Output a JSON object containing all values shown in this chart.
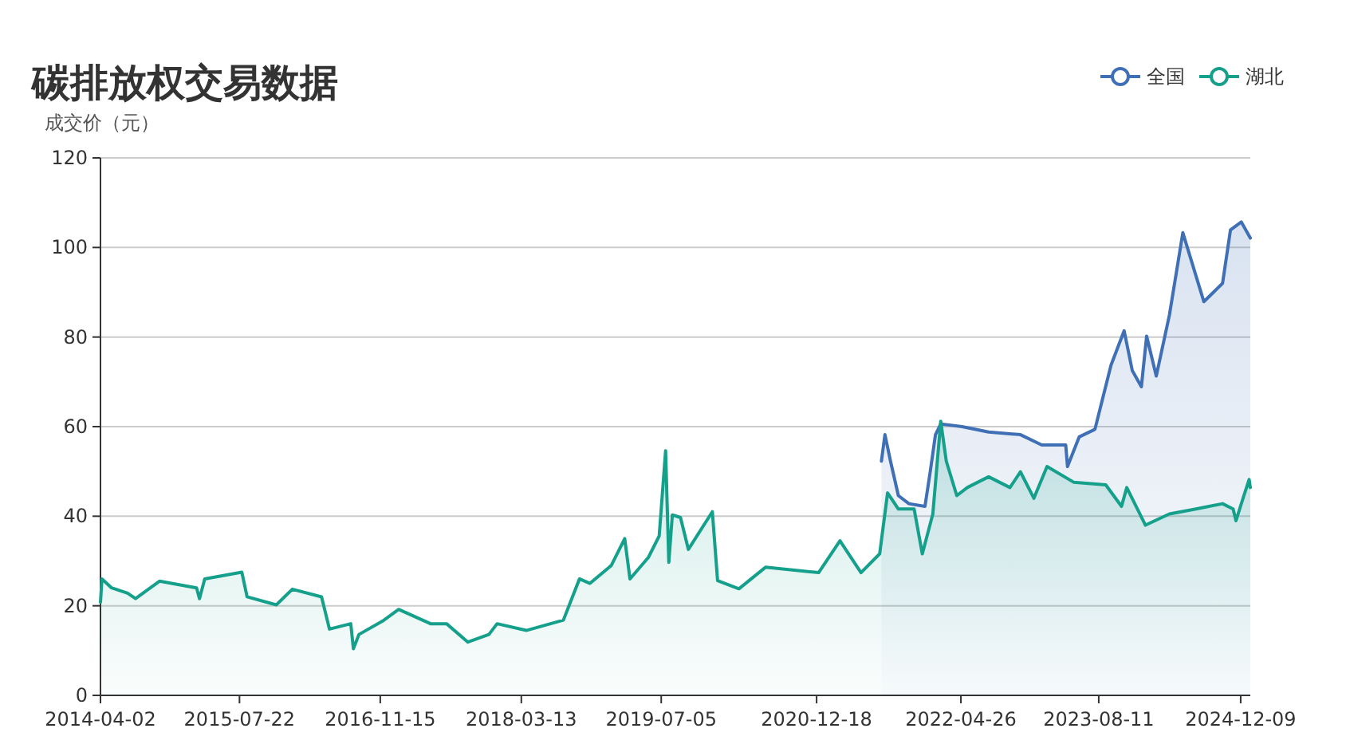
{
  "chart_data": {
    "type": "area",
    "title": "碳排放权交易数据",
    "ylabel": "成交价（元）",
    "xlim": [
      "2014-04-02",
      "2025-01-11"
    ],
    "xticks": [
      "2014-04-02",
      "2015-07-22",
      "2016-11-15",
      "2018-03-13",
      "2019-07-05",
      "2020-12-18",
      "2022-04-26",
      "2023-08-11",
      "2024-12-09"
    ],
    "ylim": [
      0,
      120
    ],
    "yticks": [
      0,
      20,
      40,
      60,
      80,
      100,
      120
    ],
    "grid": "y",
    "legend": "top right",
    "line_style": "solid",
    "series": [
      {
        "name": "全国",
        "color": "#3f6fb5",
        "x": [
          "2021-07-28",
          "2021-08-09",
          "2021-08-28",
          "2021-09-24",
          "2021-10-30",
          "2021-12-24",
          "2022-01-11",
          "2022-01-29",
          "2022-02-16",
          "2022-04-30",
          "2022-07-30",
          "2022-11-16",
          "2023-01-28",
          "2023-04-20",
          "2023-04-26",
          "2023-06-05",
          "2023-07-29",
          "2023-09-22",
          "2023-11-06",
          "2023-12-04",
          "2024-01-04",
          "2024-01-22",
          "2024-02-24",
          "2024-04-09",
          "2024-05-25",
          "2024-08-05",
          "2024-10-08",
          "2024-11-04",
          "2024-12-11",
          "2025-01-11"
        ],
        "values": [
          52.3,
          58.2,
          52.3,
          44.6,
          42.8,
          42.2,
          49.9,
          58.2,
          60.6,
          60,
          58.8,
          58.2,
          55.9,
          55.9,
          51.1,
          57.7,
          59.4,
          73.7,
          81.4,
          72.5,
          68.9,
          80.2,
          71.3,
          84.9,
          103.3,
          87.9,
          92,
          103.9,
          105.7,
          102.1
        ]
      },
      {
        "name": "湖北",
        "color": "#14a08b",
        "x": [
          "2014-04-02",
          "2014-04-07",
          "2014-05-10",
          "2014-07-04",
          "2014-07-31",
          "2014-10-21",
          "2015-02-25",
          "2015-03-07",
          "2015-03-25",
          "2015-07-30",
          "2015-08-17",
          "2015-11-25",
          "2016-01-19",
          "2016-04-28",
          "2016-05-25",
          "2016-08-06",
          "2016-08-15",
          "2016-09-03",
          "2016-11-23",
          "2017-01-17",
          "2017-05-06",
          "2017-06-30",
          "2017-09-11",
          "2017-11-22",
          "2017-12-20",
          "2018-03-30",
          "2018-08-04",
          "2018-09-28",
          "2018-11-03",
          "2019-01-15",
          "2019-03-02",
          "2019-03-20",
          "2019-05-22",
          "2019-06-28",
          "2019-07-20",
          "2019-07-31",
          "2019-08-12",
          "2019-09-09",
          "2019-10-06",
          "2019-12-27",
          "2020-01-14",
          "2020-03-27",
          "2020-06-26",
          "2020-12-25",
          "2021-03-08",
          "2021-05-19",
          "2021-07-22",
          "2021-08-18",
          "2021-09-24",
          "2021-11-17",
          "2021-12-15",
          "2022-01-20",
          "2022-02-16",
          "2022-03-07",
          "2022-04-12",
          "2022-05-18",
          "2022-07-30",
          "2022-10-11",
          "2022-11-16",
          "2023-01-01",
          "2023-02-15",
          "2023-05-17",
          "2023-09-04",
          "2023-10-28",
          "2023-11-15",
          "2024-01-18",
          "2024-04-09",
          "2024-07-09",
          "2024-10-08",
          "2024-11-13",
          "2024-11-23",
          "2024-12-20",
          "2025-01-07",
          "2025-01-11"
        ],
        "values": [
          20.8,
          26,
          24,
          22.8,
          21.6,
          25.5,
          24,
          21.6,
          26,
          27.5,
          22,
          20.2,
          23.7,
          22,
          14.8,
          16,
          10.4,
          13.6,
          16.6,
          19.2,
          16,
          16,
          11.9,
          13.6,
          16,
          14.5,
          16.8,
          26,
          25,
          29,
          35,
          26,
          30.8,
          35.6,
          54.6,
          29.7,
          40.3,
          39.7,
          32.6,
          41,
          25.6,
          23.8,
          28.6,
          27.4,
          34.5,
          27.4,
          31.6,
          45.2,
          41.6,
          41.6,
          31.6,
          40.5,
          61.2,
          52.3,
          44.6,
          46.4,
          48.8,
          46.4,
          49.9,
          44,
          51.1,
          47.6,
          47,
          42.2,
          46.4,
          38,
          40.5,
          41.6,
          42.8,
          41.6,
          39,
          44.6,
          48.2,
          46.4
        ]
      }
    ]
  }
}
